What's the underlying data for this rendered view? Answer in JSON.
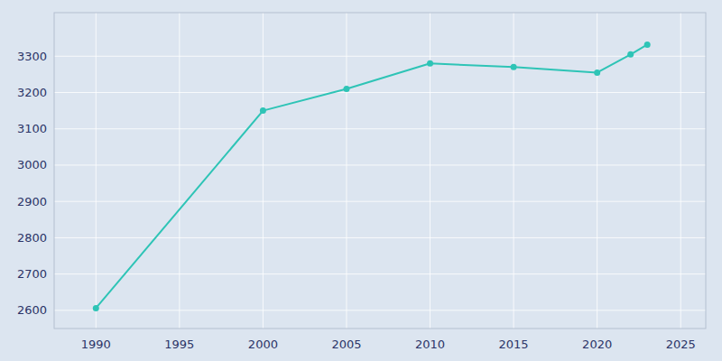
{
  "chart_data": {
    "type": "line",
    "x": [
      1990,
      2000,
      2005,
      2010,
      2015,
      2020,
      2022,
      2023
    ],
    "values": [
      2606,
      3150,
      3210,
      3280,
      3270,
      3255,
      3305,
      3332
    ],
    "color": "#2ec4b6",
    "marker": "circle",
    "xlim": [
      1987.5,
      2026.5
    ],
    "ylim": [
      2550,
      3420
    ],
    "xticks": [
      1990,
      1995,
      2000,
      2005,
      2010,
      2015,
      2020,
      2025
    ],
    "yticks": [
      2600,
      2700,
      2800,
      2900,
      3000,
      3100,
      3200,
      3300
    ],
    "grid": true
  }
}
